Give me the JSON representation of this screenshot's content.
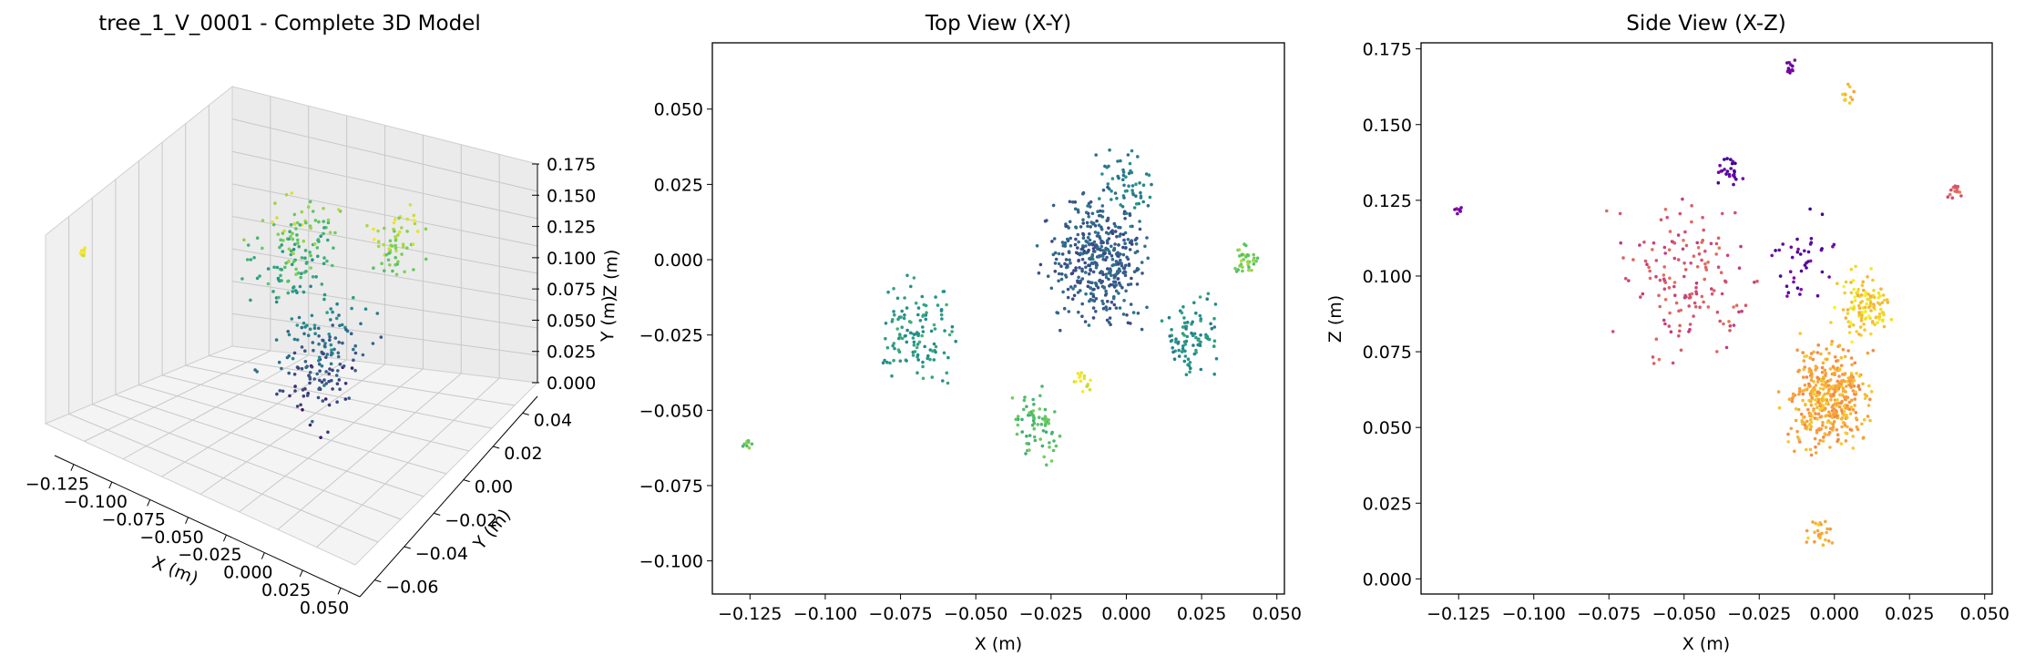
{
  "chart_data": [
    {
      "type": "scatter",
      "projection": "3d",
      "title": "tree_1_V_0001 - Complete 3D Model",
      "xlabel": "X (m)",
      "ylabel": "Y (m)",
      "zlabel": "Z (m)",
      "xticks": [
        "−0.125",
        "−0.100",
        "−0.075",
        "−0.050",
        "−0.025",
        "0.000",
        "0.025",
        "0.050"
      ],
      "yticks": [
        "−0.06",
        "−0.04",
        "−0.02",
        "0.00",
        "0.02",
        "0.04"
      ],
      "zticks": [
        "0.000",
        "0.025",
        "0.050",
        "0.075",
        "0.100",
        "0.125",
        "0.150",
        "0.175"
      ],
      "colormap": "viridis",
      "clusters": [
        {
          "x": -0.02,
          "y": -0.015,
          "z": 0.04,
          "count": 160,
          "spread": 0.03
        },
        {
          "x": -0.05,
          "y": 0.0,
          "z": 0.09,
          "count": 140,
          "spread": 0.03
        },
        {
          "x": 0.005,
          "y": 0.01,
          "z": 0.11,
          "count": 60,
          "spread": 0.02
        },
        {
          "x": -0.125,
          "y": -0.062,
          "z": 0.122,
          "count": 8,
          "spread": 0.003
        }
      ]
    },
    {
      "type": "scatter",
      "title": "Top View (X-Y)",
      "xlabel": "X (m)",
      "ylabel": "Y (m)",
      "xlim": [
        -0.1375,
        0.0525
      ],
      "ylim": [
        -0.111,
        0.072
      ],
      "xticks": [
        "−0.125",
        "−0.100",
        "−0.075",
        "−0.050",
        "−0.025",
        "0.000",
        "0.025",
        "0.050"
      ],
      "yticks": [
        "−0.100",
        "−0.075",
        "−0.050",
        "−0.025",
        "0.000",
        "0.025",
        "0.050"
      ],
      "colormap": "viridis",
      "clusters": [
        {
          "x": -0.01,
          "y": 0.0,
          "count": 420,
          "spread": 0.022,
          "c": 0.3
        },
        {
          "x": -0.07,
          "y": -0.025,
          "count": 120,
          "spread": 0.018,
          "c": 0.55
        },
        {
          "x": 0.022,
          "y": -0.025,
          "count": 90,
          "spread": 0.012,
          "c": 0.5
        },
        {
          "x": -0.03,
          "y": -0.055,
          "count": 70,
          "spread": 0.012,
          "c": 0.7
        },
        {
          "x": -0.0,
          "y": 0.025,
          "count": 60,
          "spread": 0.012,
          "c": 0.45
        },
        {
          "x": 0.04,
          "y": 0.0,
          "count": 35,
          "spread": 0.006,
          "c": 0.8
        },
        {
          "x": -0.015,
          "y": -0.04,
          "count": 15,
          "spread": 0.005,
          "c": 0.97
        },
        {
          "x": -0.126,
          "y": -0.061,
          "count": 10,
          "spread": 0.002,
          "c": 0.75
        }
      ]
    },
    {
      "type": "scatter",
      "title": "Side View (X-Z)",
      "xlabel": "X (m)",
      "ylabel": "Z (m)",
      "xlim": [
        -0.1375,
        0.0525
      ],
      "ylim": [
        -0.005,
        0.177
      ],
      "xticks": [
        "−0.125",
        "−0.100",
        "−0.075",
        "−0.050",
        "−0.025",
        "0.000",
        "0.025",
        "0.050"
      ],
      "yticks": [
        "0.000",
        "0.025",
        "0.050",
        "0.075",
        "0.100",
        "0.125",
        "0.150",
        "0.175"
      ],
      "colormap": "plasma",
      "clusters": [
        {
          "x": -0.002,
          "y": 0.06,
          "count": 420,
          "spread": 0.018,
          "c": 0.8
        },
        {
          "x": -0.05,
          "y": 0.1,
          "count": 150,
          "spread": 0.03,
          "c": 0.55
        },
        {
          "x": 0.01,
          "y": 0.09,
          "count": 120,
          "spread": 0.012,
          "c": 0.9
        },
        {
          "x": -0.01,
          "y": 0.105,
          "count": 40,
          "spread": 0.015,
          "c": 0.2
        },
        {
          "x": -0.035,
          "y": 0.135,
          "count": 25,
          "spread": 0.006,
          "c": 0.15
        },
        {
          "x": -0.015,
          "y": 0.169,
          "count": 12,
          "spread": 0.004,
          "c": 0.25
        },
        {
          "x": 0.005,
          "y": 0.16,
          "count": 12,
          "spread": 0.004,
          "c": 0.85
        },
        {
          "x": 0.04,
          "y": 0.128,
          "count": 15,
          "spread": 0.003,
          "c": 0.6
        },
        {
          "x": -0.125,
          "y": 0.122,
          "count": 8,
          "spread": 0.002,
          "c": 0.25
        },
        {
          "x": -0.005,
          "y": 0.015,
          "count": 25,
          "spread": 0.006,
          "c": 0.85
        }
      ]
    }
  ]
}
